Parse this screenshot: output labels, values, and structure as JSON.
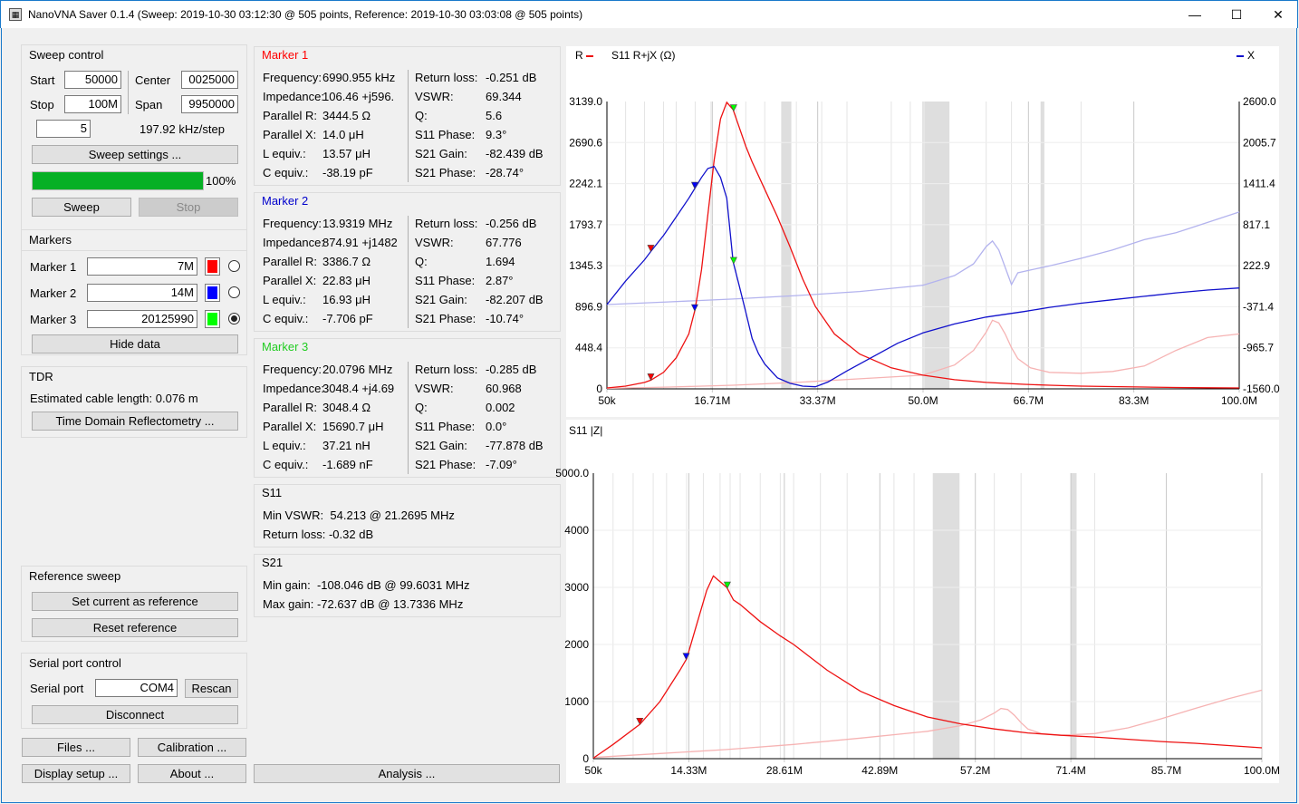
{
  "window": {
    "title": "NanoVNA Saver 0.1.4 (Sweep: 2019-10-30 03:12:30 @ 505 points, Reference: 2019-10-30 03:03:08 @ 505 points)",
    "minimize": "—",
    "maximize": "☐",
    "close": "✕"
  },
  "sweep_control": {
    "title": "Sweep control",
    "start_label": "Start",
    "start_value": "50000",
    "center_label": "Center",
    "center_value": "0025000",
    "stop_label": "Stop",
    "stop_value": "100M",
    "span_label": "Span",
    "span_value": "9950000",
    "segments_value": "5",
    "step_text": "197.92 kHz/step",
    "settings_button": "Sweep settings ...",
    "progress_percent": 100,
    "progress_text": "100%",
    "sweep_button": "Sweep",
    "stop_button": "Stop"
  },
  "markers": {
    "title": "Markers",
    "items": [
      {
        "label": "Marker 1",
        "value": "7M",
        "color": "#ff0000",
        "selected": false
      },
      {
        "label": "Marker 2",
        "value": "14M",
        "color": "#0000ff",
        "selected": false
      },
      {
        "label": "Marker 3",
        "value": "20125990",
        "color": "#00ff00",
        "selected": true
      }
    ],
    "hide_button": "Hide data"
  },
  "tdr": {
    "title": "TDR",
    "estimated_text": "Estimated cable length: 0.076 m",
    "button": "Time Domain Reflectometry ..."
  },
  "reference_sweep": {
    "title": "Reference sweep",
    "set_button": "Set current as reference",
    "reset_button": "Reset reference"
  },
  "serial": {
    "title": "Serial port control",
    "port_label": "Serial port",
    "port_value": "COM4",
    "rescan_button": "Rescan",
    "disconnect_button": "Disconnect"
  },
  "bottom_buttons": {
    "files": "Files ...",
    "calibration": "Calibration ...",
    "display_setup": "Display setup ...",
    "about": "About ...",
    "analysis": "Analysis ..."
  },
  "marker_panels": [
    {
      "title": "Marker 1",
      "color": "#ff0000",
      "left": [
        {
          "label": "Frequency:",
          "value": "6990.955 kHz"
        },
        {
          "label": "Impedance:",
          "value": "106.46 +j596."
        },
        {
          "label": "Parallel R:",
          "value": "3444.5 Ω"
        },
        {
          "label": "Parallel X:",
          "value": "14.0 μH"
        },
        {
          "label": "L equiv.:",
          "value": "13.57 μH"
        },
        {
          "label": "C equiv.:",
          "value": "-38.19 pF"
        }
      ],
      "right": [
        {
          "label": "Return loss:",
          "value": "-0.251 dB"
        },
        {
          "label": "VSWR:",
          "value": "69.344"
        },
        {
          "label": "Q:",
          "value": "5.6"
        },
        {
          "label": "S11 Phase:",
          "value": "9.3°"
        },
        {
          "label": "S21 Gain:",
          "value": "-82.439 dB"
        },
        {
          "label": "S21 Phase:",
          "value": "-28.74°"
        }
      ]
    },
    {
      "title": "Marker 2",
      "color": "#0000cc",
      "left": [
        {
          "label": "Frequency:",
          "value": "13.9319 MHz"
        },
        {
          "label": "Impedance:",
          "value": "874.91 +j1482"
        },
        {
          "label": "Parallel R:",
          "value": "3386.7 Ω"
        },
        {
          "label": "Parallel X:",
          "value": "22.83 μH"
        },
        {
          "label": "L equiv.:",
          "value": "16.93 μH"
        },
        {
          "label": "C equiv.:",
          "value": "-7.706 pF"
        }
      ],
      "right": [
        {
          "label": "Return loss:",
          "value": "-0.256 dB"
        },
        {
          "label": "VSWR:",
          "value": "67.776"
        },
        {
          "label": "Q:",
          "value": "1.694"
        },
        {
          "label": "S11 Phase:",
          "value": "2.87°"
        },
        {
          "label": "S21 Gain:",
          "value": "-82.207 dB"
        },
        {
          "label": "S21 Phase:",
          "value": "-10.74°"
        }
      ]
    },
    {
      "title": "Marker 3",
      "color": "#22cc22",
      "left": [
        {
          "label": "Frequency:",
          "value": "20.0796 MHz"
        },
        {
          "label": "Impedance:",
          "value": "3048.4 +j4.69"
        },
        {
          "label": "Parallel R:",
          "value": "3048.4 Ω"
        },
        {
          "label": "Parallel X:",
          "value": "15690.7 μH"
        },
        {
          "label": "L equiv.:",
          "value": "37.21 nH"
        },
        {
          "label": "C equiv.:",
          "value": "-1.689 nF"
        }
      ],
      "right": [
        {
          "label": "Return loss:",
          "value": "-0.285 dB"
        },
        {
          "label": "VSWR:",
          "value": "60.968"
        },
        {
          "label": "Q:",
          "value": "0.002"
        },
        {
          "label": "S11 Phase:",
          "value": "0.0°"
        },
        {
          "label": "S21 Gain:",
          "value": "-77.878 dB"
        },
        {
          "label": "S21 Phase:",
          "value": "-7.09°"
        }
      ]
    }
  ],
  "s11_summary": {
    "title": "S11",
    "min_vswr": "Min VSWR:  54.213 @ 21.2695 MHz",
    "return_loss": "Return loss: -0.32 dB"
  },
  "s21_summary": {
    "title": "S21",
    "min_gain": "Min gain:  -108.046 dB @ 99.6031 MHz",
    "max_gain": "Max gain:  -72.637 dB @ 13.7336 MHz"
  },
  "chart_data": [
    {
      "type": "line",
      "title": "S11  R+jX (Ω)",
      "legend_left": "R",
      "legend_right": "X",
      "x_ticks": [
        "50k",
        "16.71M",
        "33.37M",
        "50.0M",
        "66.7M",
        "83.3M",
        "100.0M"
      ],
      "y_left_ticks": [
        "3139.0",
        "2690.6",
        "2242.1",
        "1793.7",
        "1345.3",
        "896.9",
        "448.4",
        "0"
      ],
      "y_right_ticks": [
        "2600.0",
        "2005.7",
        "1411.4",
        "817.1",
        "222.9",
        "-371.4",
        "-965.7",
        "-1560.0"
      ],
      "xlim": [
        0.05,
        100.0
      ],
      "ylim_left": [
        0,
        3139.0
      ],
      "ylim_right": [
        -1560.0,
        2600.0
      ],
      "series": [
        {
          "name": "R",
          "axis": "left",
          "color": "#ee1111",
          "x": [
            0.05,
            3,
            6,
            7,
            9,
            11,
            13,
            14,
            15,
            16,
            17,
            18,
            19,
            20,
            21,
            22,
            23,
            25,
            27,
            29,
            31,
            33,
            36,
            40,
            45,
            50,
            55,
            60,
            66,
            70,
            75,
            80,
            85,
            90,
            95,
            100
          ],
          "y": [
            10,
            30,
            70,
            95,
            180,
            340,
            600,
            870,
            1300,
            1900,
            2500,
            2950,
            3130,
            3050,
            2850,
            2650,
            2480,
            2180,
            1880,
            1550,
            1200,
            900,
            600,
            380,
            230,
            150,
            100,
            70,
            50,
            40,
            30,
            25,
            20,
            15,
            12,
            10
          ]
        },
        {
          "name": "X",
          "axis": "right",
          "color": "#1111cc",
          "x": [
            0.05,
            3,
            6,
            7,
            9,
            11,
            13,
            14,
            15,
            16,
            17,
            18,
            19,
            20,
            21,
            22,
            23,
            24,
            25,
            27,
            29,
            31,
            33,
            35,
            38,
            42,
            46,
            50,
            55,
            60,
            66,
            70,
            75,
            80,
            85,
            90,
            95,
            100
          ],
          "y": [
            -340,
            0,
            310,
            430,
            660,
            930,
            1200,
            1350,
            1500,
            1630,
            1660,
            1500,
            1200,
            280,
            -80,
            -450,
            -830,
            -1050,
            -1200,
            -1400,
            -1480,
            -1520,
            -1530,
            -1460,
            -1300,
            -1100,
            -900,
            -750,
            -620,
            -520,
            -440,
            -380,
            -320,
            -270,
            -220,
            -170,
            -130,
            -100
          ]
        },
        {
          "name": "R (reference)",
          "axis": "left",
          "color": "#f6b3b3",
          "x": [
            0.05,
            10,
            20,
            30,
            40,
            50,
            55,
            58,
            60,
            61,
            62,
            63,
            64,
            65,
            67,
            70,
            75,
            80,
            85,
            90,
            95,
            100
          ],
          "y": [
            5,
            20,
            40,
            70,
            110,
            150,
            260,
            420,
            620,
            750,
            720,
            600,
            450,
            330,
            230,
            180,
            170,
            190,
            250,
            420,
            560,
            600
          ]
        },
        {
          "name": "X (reference)",
          "axis": "right",
          "color": "#b3b3ee",
          "x": [
            0.05,
            10,
            20,
            30,
            40,
            50,
            55,
            58,
            60,
            61,
            62,
            63,
            64,
            65,
            67,
            70,
            75,
            80,
            85,
            90,
            95,
            100
          ],
          "y": [
            -340,
            -300,
            -260,
            -210,
            -150,
            -60,
            80,
            250,
            500,
            580,
            450,
            200,
            -50,
            120,
            160,
            220,
            330,
            450,
            600,
            700,
            850,
            1000
          ]
        }
      ],
      "markers": [
        {
          "label": "Marker 1",
          "color": "#ff0000",
          "x": 6.99
        },
        {
          "label": "Marker 2",
          "color": "#0000ff",
          "x": 13.93
        },
        {
          "label": "Marker 3",
          "color": "#00ff00",
          "x": 20.08
        }
      ]
    },
    {
      "type": "line",
      "title": "S11  |Z|",
      "x_ticks": [
        "50k",
        "14.33M",
        "28.61M",
        "42.89M",
        "57.2M",
        "71.4M",
        "85.7M",
        "100.0M"
      ],
      "y_ticks": [
        "5000.0",
        "4000",
        "3000",
        "2000",
        "1000",
        "0"
      ],
      "xlim": [
        0.05,
        100.0
      ],
      "ylim": [
        0,
        5000.0
      ],
      "series": [
        {
          "name": "|Z|",
          "color": "#ee1111",
          "x": [
            0.05,
            3,
            7,
            10,
            13,
            14,
            15,
            16,
            17,
            18,
            19,
            20,
            21,
            22,
            25,
            28,
            30,
            35,
            40,
            45,
            50,
            55,
            60,
            65,
            70,
            75,
            80,
            85,
            90,
            95,
            100
          ],
          "y": [
            10,
            250,
            600,
            1000,
            1550,
            1750,
            2150,
            2550,
            2950,
            3200,
            3100,
            3000,
            2780,
            2700,
            2400,
            2150,
            2000,
            1550,
            1180,
            930,
            730,
            610,
            520,
            450,
            410,
            380,
            340,
            300,
            270,
            230,
            190
          ]
        },
        {
          "name": "|Z| (reference)",
          "color": "#f6b3b3",
          "x": [
            0.05,
            10,
            20,
            30,
            40,
            50,
            55,
            58,
            60,
            61,
            62,
            63,
            64,
            65,
            67,
            70,
            75,
            80,
            85,
            90,
            95,
            100
          ],
          "y": [
            20,
            90,
            160,
            250,
            360,
            480,
            580,
            680,
            800,
            880,
            860,
            760,
            630,
            520,
            440,
            410,
            440,
            540,
            700,
            880,
            1050,
            1200
          ]
        }
      ],
      "markers": [
        {
          "label": "Marker 1",
          "color": "#ff0000",
          "x": 6.99
        },
        {
          "label": "Marker 2",
          "color": "#0000ff",
          "x": 13.93
        },
        {
          "label": "Marker 3",
          "color": "#00ff00",
          "x": 20.08
        }
      ]
    }
  ]
}
